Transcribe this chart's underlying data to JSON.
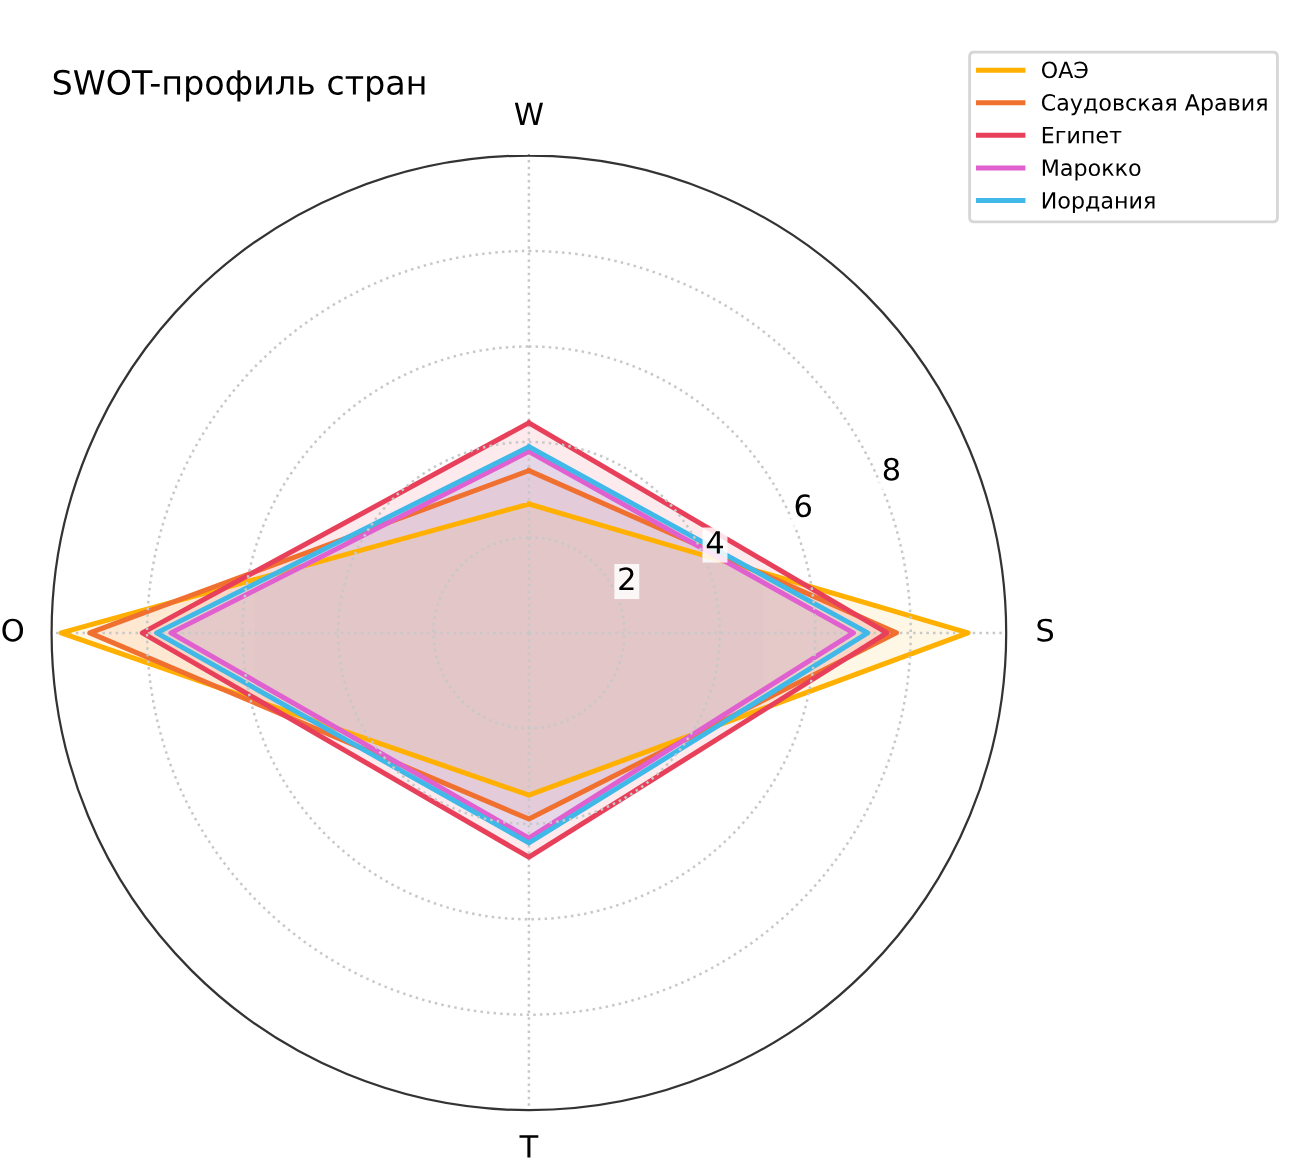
{
  "chart_data": {
    "type": "radar",
    "title": "SWOT-профиль стран",
    "categories": [
      "W",
      "S",
      "T",
      "O"
    ],
    "ylim": [
      0,
      10
    ],
    "yticks": [
      2,
      4,
      6,
      8
    ],
    "grid": true,
    "legend": "top right",
    "series": [
      {
        "name": "ОАЭ",
        "color": "#ffb000",
        "values": [
          2.7,
          9.2,
          3.4,
          9.8
        ]
      },
      {
        "name": "Саудовская Аравия",
        "color": "#f07030",
        "values": [
          3.4,
          7.7,
          3.9,
          9.2
        ]
      },
      {
        "name": "Египет",
        "color": "#e8405a",
        "values": [
          4.4,
          7.5,
          4.7,
          8.1
        ]
      },
      {
        "name": "Марокко",
        "color": "#e060d0",
        "values": [
          3.8,
          6.8,
          4.3,
          7.5
        ]
      },
      {
        "name": "Иордания",
        "color": "#40b8e8",
        "values": [
          3.9,
          7.1,
          4.4,
          7.8
        ]
      }
    ]
  }
}
